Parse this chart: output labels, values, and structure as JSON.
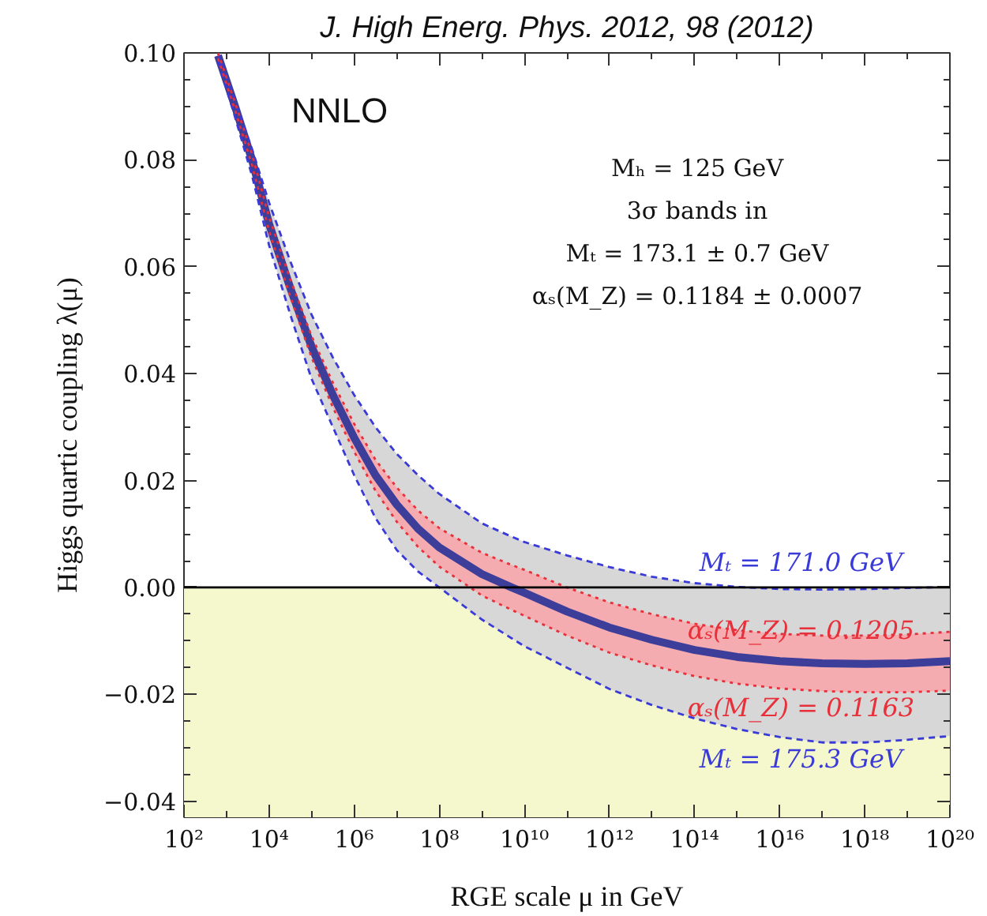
{
  "chart_data": {
    "type": "line",
    "title": "J. High Energ. Phys. 2012, 98 (2012)",
    "xlabel": "RGE scale μ in GeV",
    "ylabel": "Higgs quartic coupling λ(μ)",
    "annotations": [
      "NNLO",
      "Mₕ = 125 GeV",
      "3σ bands in",
      "Mₜ = 173.1 ± 0.7 GeV",
      "αₛ(M_Z) = 0.1184 ± 0.0007"
    ],
    "log": "x",
    "x": [
      631,
      1585,
      3981,
      10000.0,
      31600.0,
      100000.0,
      316000.0,
      1000000.0,
      3160000.0,
      10000000.0,
      31600000.0,
      100000000.0,
      1000000000.0,
      5010000000.0,
      10000000000.0,
      100000000000.0,
      1000000000000.0,
      10000000000000.0,
      100000000000000.0,
      1000000000000000.0,
      1e+16,
      1e+17,
      1e+18,
      1e+19,
      1e+20
    ],
    "series": [
      {
        "name": "Mₜ = 171.0 GeV",
        "color": "#3a3ad8",
        "line_style": "dashed",
        "values": [
          0.1,
          0.091,
          0.082,
          0.072,
          0.061,
          0.051,
          0.043,
          0.036,
          0.03,
          0.025,
          0.021,
          0.0175,
          0.012,
          0.0095,
          0.0085,
          0.006,
          0.0038,
          0.002,
          0.0008,
          0.0001,
          -0.0003,
          -0.0004,
          -0.0003,
          -0.0001,
          0.0001
        ]
      },
      {
        "name": "Mₜ = 175.3 GeV",
        "color": "#3a3ad8",
        "line_style": "dashed",
        "values": [
          0.0985,
          0.088,
          0.077,
          0.064,
          0.051,
          0.039,
          0.03,
          0.021,
          0.013,
          0.007,
          0.003,
          0.0,
          -0.006,
          -0.0095,
          -0.011,
          -0.015,
          -0.019,
          -0.022,
          -0.0245,
          -0.0265,
          -0.028,
          -0.029,
          -0.029,
          -0.0285,
          -0.0278
        ]
      },
      {
        "name": "αₛ(M_Z) = 0.1205",
        "color": "#e8303a",
        "line_style": "dotted",
        "values": [
          0.1,
          0.0907,
          0.081,
          0.0693,
          0.0576,
          0.047,
          0.0383,
          0.0306,
          0.0239,
          0.0187,
          0.0144,
          0.0111,
          0.0065,
          0.0042,
          0.0033,
          0.0,
          -0.0028,
          -0.005,
          -0.0068,
          -0.008,
          -0.0087,
          -0.009,
          -0.009,
          -0.0088,
          -0.0083
        ]
      },
      {
        "name": "αₛ(M_Z) = 0.1163",
        "color": "#e8303a",
        "line_style": "dotted",
        "values": [
          0.099,
          0.0893,
          0.079,
          0.0667,
          0.0544,
          0.043,
          0.0337,
          0.0254,
          0.0181,
          0.0123,
          0.0076,
          0.0039,
          -0.0015,
          -0.0042,
          -0.0053,
          -0.009,
          -0.0122,
          -0.0146,
          -0.0166,
          -0.018,
          -0.0189,
          -0.0194,
          -0.0196,
          -0.0196,
          -0.0193
        ]
      },
      {
        "color": "#3d3d9a",
        "line_style": "solid",
        "lower": [
          0.099,
          0.0893,
          0.079,
          0.0667,
          0.0544,
          0.043,
          0.0337,
          0.0254,
          0.0181,
          0.0123,
          0.0076,
          0.0039,
          -0.0015,
          -0.0042,
          -0.0053,
          -0.009,
          -0.0122,
          -0.0146,
          -0.0166,
          -0.018,
          -0.0189,
          -0.0194,
          -0.0196,
          -0.0196,
          -0.0193
        ],
        "upper": [
          0.1,
          0.0907,
          0.081,
          0.0693,
          0.0576,
          0.047,
          0.0383,
          0.0306,
          0.0239,
          0.0187,
          0.0144,
          0.0111,
          0.0065,
          0.0042,
          0.0033,
          0.0,
          -0.0028,
          -0.005,
          -0.0068,
          -0.008,
          -0.0087,
          -0.009,
          -0.009,
          -0.0088,
          -0.0083
        ],
        "values": [
          0.0995,
          0.09,
          0.08,
          0.068,
          0.056,
          0.045,
          0.036,
          0.028,
          0.021,
          0.0155,
          0.011,
          0.0075,
          0.0025,
          0.0,
          -0.001,
          -0.0045,
          -0.0075,
          -0.0098,
          -0.0117,
          -0.013,
          -0.0138,
          -0.0142,
          -0.0143,
          -0.0142,
          -0.0138
        ]
      }
    ],
    "bands": [
      {
        "axis": "y",
        "from": -0.043,
        "to": 0,
        "color": "#f4f8cc"
      }
    ],
    "ref_lines": [
      {
        "axis": "y",
        "value": 0,
        "color": "#000000"
      }
    ],
    "xlim": [
      100,
      1e+20
    ],
    "xticks": [
      {
        "value": 100,
        "label": "10²"
      },
      {
        "value": 10000.0,
        "label": "10⁴"
      },
      {
        "value": 1000000.0,
        "label": "10⁶"
      },
      {
        "value": 100000000.0,
        "label": "10⁸"
      },
      {
        "value": 10000000000.0,
        "label": "10¹⁰"
      },
      {
        "value": 1000000000000.0,
        "label": "10¹²"
      },
      {
        "value": 100000000000000.0,
        "label": "10¹⁴"
      },
      {
        "value": 1e+16,
        "label": "10¹⁶"
      },
      {
        "value": 1e+18,
        "label": "10¹⁸"
      },
      {
        "value": 1e+20,
        "label": "10²⁰"
      }
    ],
    "ylim": [
      -0.043,
      0.1
    ],
    "yticks": [
      {
        "value": -0.04,
        "label": "−0.04"
      },
      {
        "value": -0.02,
        "label": "−0.02"
      },
      {
        "value": 0,
        "label": "0.00"
      },
      {
        "value": 0.02,
        "label": "0.02"
      },
      {
        "value": 0.04,
        "label": "0.04"
      },
      {
        "value": 0.06,
        "label": "0.06"
      },
      {
        "value": 0.08,
        "label": "0.08"
      },
      {
        "value": 0.1,
        "label": "0.10"
      }
    ],
    "grid": false,
    "legend": false
  }
}
